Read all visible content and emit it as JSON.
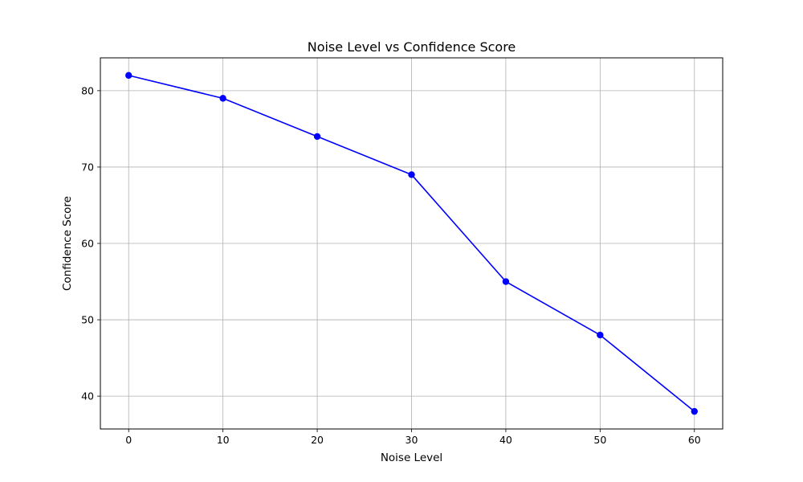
{
  "chart_data": {
    "type": "line",
    "title": "Noise Level vs Confidence Score",
    "xlabel": "Noise Level",
    "ylabel": "Confidence Score",
    "x": [
      0,
      10,
      20,
      30,
      40,
      50,
      60
    ],
    "series": [
      {
        "values": [
          82,
          79,
          74,
          69,
          55,
          48,
          38
        ]
      }
    ],
    "xlim": [
      -3,
      63
    ],
    "ylim": [
      35.7,
      84.3
    ],
    "xticks": [
      0,
      10,
      20,
      30,
      40,
      50,
      60
    ],
    "yticks": [
      40,
      50,
      60,
      70,
      80
    ],
    "grid": true,
    "line_color": "#0000ff",
    "marker": "circle"
  }
}
